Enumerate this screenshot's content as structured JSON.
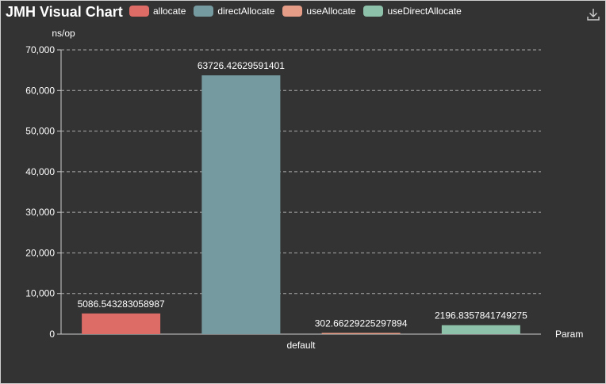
{
  "toolbar": {
    "download_icon": "download-icon"
  },
  "chart_data": {
    "type": "bar",
    "title": "JMH Visual Chart",
    "ylabel": "ns/op",
    "xlabel": "Param",
    "categories": [
      "default"
    ],
    "ylim": [
      0,
      70000
    ],
    "yticks": [
      "0",
      "10,000",
      "20,000",
      "30,000",
      "40,000",
      "50,000",
      "60,000",
      "70,000"
    ],
    "grid": true,
    "legend_position": "top",
    "series": [
      {
        "name": "allocate",
        "color": "#dd6b66",
        "values": [
          5086.543283058987
        ],
        "label": "5086.543283058987"
      },
      {
        "name": "directAllocate",
        "color": "#759aa0",
        "values": [
          63726.42629591401
        ],
        "label": "63726.42629591401"
      },
      {
        "name": "useAllocate",
        "color": "#e69d87",
        "values": [
          302.66229225297894
        ],
        "label": "302.66229225297894"
      },
      {
        "name": "useDirectAllocate",
        "color": "#8dc1a9",
        "values": [
          2196.8357841749275
        ],
        "label": "2196.8357841749275"
      }
    ]
  }
}
